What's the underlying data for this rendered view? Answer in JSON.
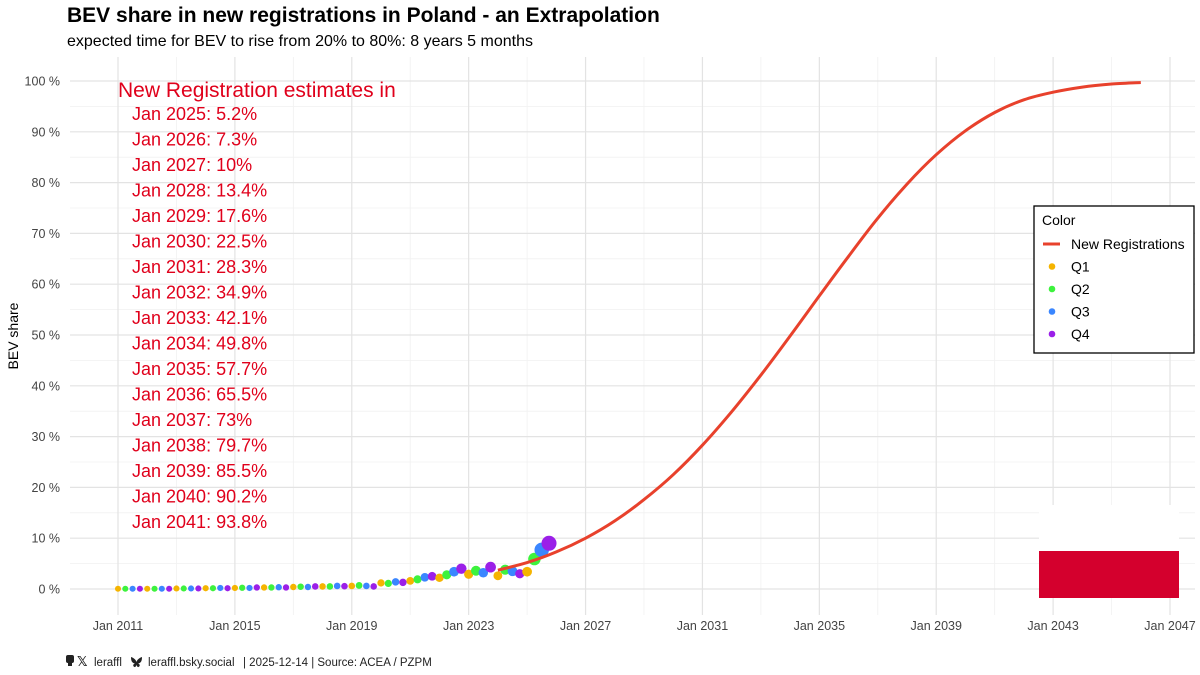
{
  "chart_data": {
    "type": "line",
    "title": "BEV share in new registrations in Poland - an Extrapolation",
    "subtitle": "expected time for BEV to rise from 20% to 80%: 8 years 5 months",
    "xlabel": "",
    "ylabel": "BEV share",
    "xlim": [
      2010.5,
      2047.3
    ],
    "ylim": [
      -5,
      104
    ],
    "x_ticks": [
      "Jan 2011",
      "Jan 2015",
      "Jan 2019",
      "Jan 2023",
      "Jan 2027",
      "Jan 2031",
      "Jan 2035",
      "Jan 2039",
      "Jan 2043",
      "Jan 2047"
    ],
    "x_tick_values": [
      2011,
      2015,
      2019,
      2023,
      2027,
      2031,
      2035,
      2039,
      2043,
      2047
    ],
    "y_ticks": [
      "0 %",
      "10 %",
      "20 %",
      "30 %",
      "40 %",
      "50 %",
      "60 %",
      "70 %",
      "80 %",
      "90 %",
      "100 %"
    ],
    "y_tick_values": [
      0,
      10,
      20,
      30,
      40,
      50,
      60,
      70,
      80,
      90,
      100
    ],
    "curve": {
      "name": "New Registrations",
      "color": "#e8412c",
      "x": [
        2024,
        2025,
        2026,
        2027,
        2028,
        2029,
        2030,
        2031,
        2032,
        2033,
        2034,
        2035,
        2036,
        2037,
        2038,
        2039,
        2040,
        2041,
        2042,
        2043,
        2044,
        2045,
        2046
      ],
      "y": [
        3.7,
        5.2,
        7.3,
        10,
        13.4,
        17.6,
        22.5,
        28.3,
        34.9,
        42.1,
        49.8,
        57.7,
        65.5,
        73,
        79.7,
        85.5,
        90.2,
        93.8,
        96.3,
        97.8,
        98.8,
        99.4,
        99.7
      ]
    },
    "scatter": {
      "Q1": {
        "color": "#f5b400",
        "points": [
          [
            2011.0,
            0.05
          ],
          [
            2012.0,
            0.05
          ],
          [
            2013.0,
            0.1
          ],
          [
            2014.0,
            0.15
          ],
          [
            2015.0,
            0.2
          ],
          [
            2016.0,
            0.3
          ],
          [
            2017.0,
            0.4
          ],
          [
            2018.0,
            0.5
          ],
          [
            2019.0,
            0.6
          ],
          [
            2020.0,
            1.2
          ],
          [
            2021.0,
            1.6
          ],
          [
            2022.0,
            2.2
          ],
          [
            2023.0,
            2.9
          ],
          [
            2024.0,
            2.6
          ],
          [
            2025.0,
            3.4
          ]
        ]
      },
      "Q2": {
        "color": "#3df23d",
        "points": [
          [
            2011.25,
            0.05
          ],
          [
            2012.25,
            0.05
          ],
          [
            2013.25,
            0.1
          ],
          [
            2014.25,
            0.15
          ],
          [
            2015.25,
            0.25
          ],
          [
            2016.25,
            0.3
          ],
          [
            2017.25,
            0.45
          ],
          [
            2018.25,
            0.5
          ],
          [
            2019.25,
            0.7
          ],
          [
            2020.25,
            1.1
          ],
          [
            2021.25,
            1.9
          ],
          [
            2022.25,
            2.8
          ],
          [
            2023.25,
            3.6
          ],
          [
            2024.25,
            3.8
          ],
          [
            2025.25,
            5.9
          ]
        ]
      },
      "Q3": {
        "color": "#3a86ff",
        "points": [
          [
            2011.5,
            0.05
          ],
          [
            2012.5,
            0.05
          ],
          [
            2013.5,
            0.1
          ],
          [
            2014.5,
            0.2
          ],
          [
            2015.5,
            0.2
          ],
          [
            2016.5,
            0.35
          ],
          [
            2017.5,
            0.4
          ],
          [
            2018.5,
            0.6
          ],
          [
            2019.5,
            0.6
          ],
          [
            2020.5,
            1.4
          ],
          [
            2021.5,
            2.3
          ],
          [
            2022.5,
            3.4
          ],
          [
            2023.5,
            3.2
          ],
          [
            2024.5,
            3.5
          ],
          [
            2025.5,
            7.7
          ]
        ]
      },
      "Q4": {
        "color": "#9b1fe8",
        "points": [
          [
            2011.75,
            0.05
          ],
          [
            2012.75,
            0.05
          ],
          [
            2013.75,
            0.1
          ],
          [
            2014.75,
            0.15
          ],
          [
            2015.75,
            0.3
          ],
          [
            2016.75,
            0.3
          ],
          [
            2017.75,
            0.5
          ],
          [
            2018.75,
            0.55
          ],
          [
            2019.75,
            0.5
          ],
          [
            2020.75,
            1.3
          ],
          [
            2021.75,
            2.5
          ],
          [
            2022.75,
            4.0
          ],
          [
            2023.75,
            4.3
          ],
          [
            2024.75,
            3.0
          ],
          [
            2025.75,
            9.0
          ]
        ]
      }
    },
    "legend": {
      "title": "Color",
      "position": "right",
      "items": [
        {
          "label": "New Registrations",
          "kind": "line",
          "color": "#e8412c"
        },
        {
          "label": "Q1",
          "kind": "point",
          "color": "#f5b400"
        },
        {
          "label": "Q2",
          "kind": "point",
          "color": "#3df23d"
        },
        {
          "label": "Q3",
          "kind": "point",
          "color": "#3a86ff"
        },
        {
          "label": "Q4",
          "kind": "point",
          "color": "#9b1fe8"
        }
      ]
    },
    "annotation": {
      "heading": "New Registration estimates in",
      "lines": [
        "Jan 2025: 5.2%",
        "Jan 2026: 7.3%",
        "Jan 2027: 10%",
        "Jan 2028: 13.4%",
        "Jan 2029: 17.6%",
        "Jan 2030: 22.5%",
        "Jan 2031: 28.3%",
        "Jan 2032: 34.9%",
        "Jan 2033: 42.1%",
        "Jan 2034: 49.8%",
        "Jan 2035: 57.7%",
        "Jan 2036: 65.5%",
        "Jan 2037: 73%",
        "Jan 2038: 79.7%",
        "Jan 2039: 85.5%",
        "Jan 2040: 90.2%",
        "Jan 2041: 93.8%"
      ],
      "color": "#e0001b"
    },
    "flag": {
      "top_color": "#ffffff",
      "bottom_color": "#d4002d"
    }
  },
  "footer": {
    "handle_x": "leraffl",
    "handle_bsky": "leraffl.bsky.social",
    "rest": "| 2025-12-14 | Source: ACEA / PZPM"
  }
}
